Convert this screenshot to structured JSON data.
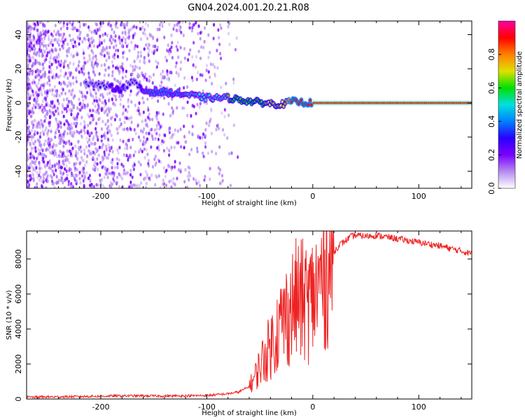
{
  "title": "GN04.2024.001.20.21.R08",
  "colors": {
    "snr_line": "#ee2222",
    "spectrogram_cmap": [
      "#ffffff",
      "#b58cf0",
      "#7a00ff",
      "#2a00ff",
      "#0080ff",
      "#00e0e0",
      "#00e000",
      "#e0e000",
      "#ff8000",
      "#ff0000",
      "#ff00a0"
    ]
  },
  "chart_data": [
    {
      "type": "heatmap",
      "xlabel": "Height of straight line (km)",
      "ylabel": "Frequency (Hz)",
      "xlim": [
        -270,
        150
      ],
      "ylim": [
        -50,
        48
      ],
      "xticks": [
        -200,
        -100,
        0,
        100
      ],
      "yticks": [
        -40,
        -20,
        0,
        20,
        40
      ],
      "xtick_labels": [
        "-200",
        "-100",
        "0",
        "100"
      ],
      "ytick_labels": [
        "-40",
        "-20",
        "0",
        "20",
        "40"
      ],
      "colorbar": {
        "label": "Normalized spectral amplitude",
        "range": [
          0,
          1
        ],
        "ticks": [
          0.0,
          0.2,
          0.4,
          0.6,
          0.8
        ],
        "tick_labels": [
          "0.0",
          "0.2",
          "0.4",
          "0.6",
          "0.8"
        ]
      },
      "signal_track": [
        {
          "x": -215,
          "freq": 12,
          "amp": 0.3
        },
        {
          "x": -180,
          "freq": 8,
          "amp": 0.35
        },
        {
          "x": -170,
          "freq": 13,
          "amp": 0.3
        },
        {
          "x": -160,
          "freq": 7,
          "amp": 0.35
        },
        {
          "x": -135,
          "freq": 6,
          "amp": 0.4
        },
        {
          "x": -120,
          "freq": 5,
          "amp": 0.45
        },
        {
          "x": -100,
          "freq": 3,
          "amp": 0.5
        },
        {
          "x": -80,
          "freq": 3,
          "amp": 0.55
        },
        {
          "x": -60,
          "freq": 1,
          "amp": 0.6
        },
        {
          "x": -45,
          "freq": 0,
          "amp": 0.65
        },
        {
          "x": -30,
          "freq": -1,
          "amp": 0.7
        },
        {
          "x": -20,
          "freq": 1,
          "amp": 0.85
        },
        {
          "x": -5,
          "freq": 0,
          "amp": 0.9
        },
        {
          "x": 0,
          "freq": 0,
          "amp": 0.95
        },
        {
          "x": 150,
          "freq": 0,
          "amp": 0.95
        }
      ]
    },
    {
      "type": "line",
      "xlabel": "Height of straight line (km)",
      "ylabel": "SNR (10 * v/v)",
      "xlim": [
        -270,
        150
      ],
      "ylim": [
        0,
        9600
      ],
      "xticks": [
        -200,
        -100,
        0,
        100
      ],
      "yticks": [
        0,
        2000,
        4000,
        6000,
        8000
      ],
      "xtick_labels": [
        "-200",
        "-100",
        "0",
        "100"
      ],
      "ytick_labels": [
        "0",
        "2000",
        "4000",
        "6000",
        "8000"
      ],
      "series": [
        {
          "x": [
            -270,
            -250,
            -230,
            -210,
            -200,
            -190,
            -180,
            -160,
            -140,
            -120,
            -100,
            -90,
            -80,
            -70,
            -60,
            -55,
            -50,
            -45,
            -40,
            -35,
            -30,
            -25,
            -20,
            -15,
            -10,
            -5,
            0,
            5,
            10,
            15,
            20,
            25,
            30,
            35,
            40,
            50,
            60,
            70,
            80,
            90,
            100,
            110,
            120,
            130,
            140,
            150
          ],
          "values": [
            100,
            120,
            130,
            150,
            160,
            170,
            180,
            180,
            170,
            180,
            200,
            250,
            300,
            400,
            700,
            1200,
            1900,
            2500,
            3000,
            3800,
            4300,
            4800,
            5200,
            5700,
            5600,
            5500,
            5800,
            6300,
            7300,
            8000,
            8400,
            8800,
            9000,
            9250,
            9350,
            9300,
            9350,
            9250,
            9150,
            9050,
            8950,
            8850,
            8750,
            8600,
            8450,
            8300
          ]
        }
      ]
    }
  ]
}
